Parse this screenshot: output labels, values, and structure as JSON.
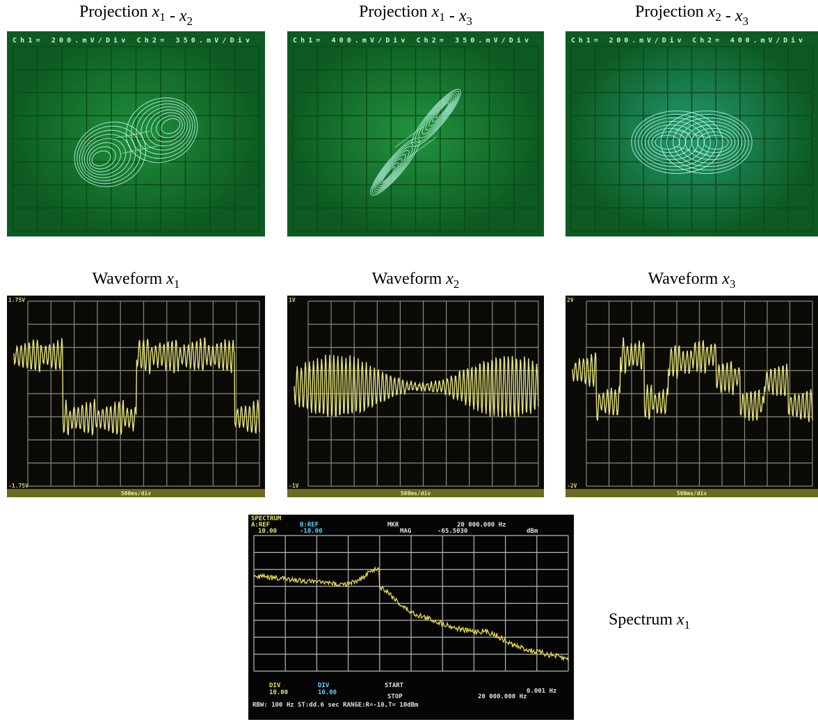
{
  "projections": [
    {
      "caption": {
        "prefix": "Projection",
        "sep": "-",
        "terms": [
          {
            "var": "x",
            "sub": "1"
          },
          {
            "var": "x",
            "sub": "2"
          }
        ]
      },
      "readout": "Ch1= 200.mV/Div Ch2= 350.mV/Div"
    },
    {
      "caption": {
        "prefix": "Projection",
        "sep": "-",
        "terms": [
          {
            "var": "x",
            "sub": "1"
          },
          {
            "var": "x",
            "sub": "3"
          }
        ]
      },
      "readout": "Ch1= 400.mV/Div Ch2= 350.mV/Div"
    },
    {
      "caption": {
        "prefix": "Projection",
        "sep": "-",
        "terms": [
          {
            "var": "x",
            "sub": "2"
          },
          {
            "var": "x",
            "sub": "3"
          }
        ]
      },
      "readout": "Ch1= 200.mV/Div Ch2= 400.mV/Div"
    }
  ],
  "waveforms": [
    {
      "caption": {
        "prefix": "Waveform",
        "terms": [
          {
            "var": "x",
            "sub": "1"
          }
        ]
      },
      "top": "1.75V",
      "bottom": "-1.75V",
      "scale": "500ms/div"
    },
    {
      "caption": {
        "prefix": "Waveform",
        "terms": [
          {
            "var": "x",
            "sub": "2"
          }
        ]
      },
      "top": "1V",
      "bottom": "-1V",
      "scale": "500ms/div"
    },
    {
      "caption": {
        "prefix": "Waveform",
        "terms": [
          {
            "var": "x",
            "sub": "3"
          }
        ]
      },
      "top": "2V",
      "bottom": "-2V",
      "scale": "500ms/div"
    }
  ],
  "spectrum": {
    "caption": {
      "prefix": "Spectrum",
      "terms": [
        {
          "var": "x",
          "sub": "1"
        }
      ]
    },
    "readout": [
      "SPECTRUM",
      "A:REF",
      "B:REF",
      "MKR",
      "20 000.000 Hz",
      "10.00",
      "-10.00",
      "MAG",
      "-65.5030",
      "dBm",
      "DIV",
      "DIV",
      "10.00",
      "10.00",
      "START",
      "0.001 Hz",
      "STOP",
      "20 000.000 Hz",
      "RBW: 100 Hz ST:dd.6 sec RANGE:R=-10,T= 10dBm"
    ]
  }
}
